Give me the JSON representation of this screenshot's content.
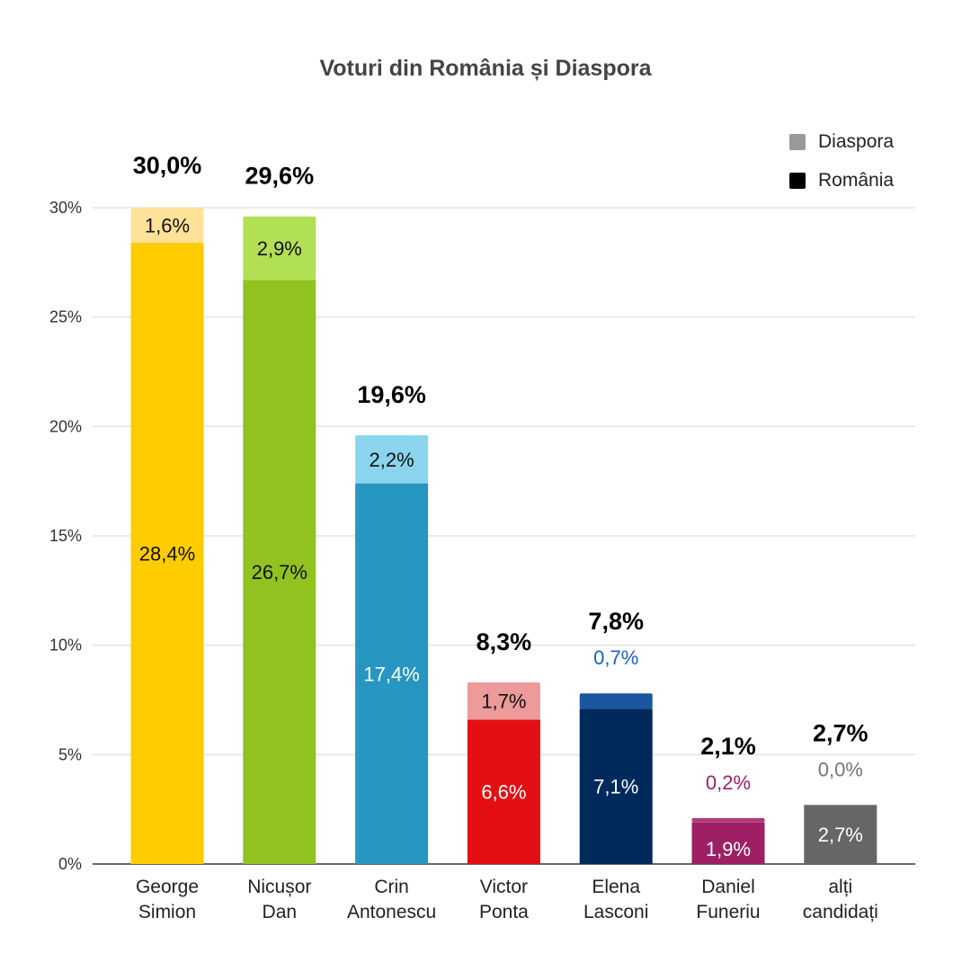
{
  "chart_data": {
    "type": "bar",
    "stacked": true,
    "title": "Voturi din România și Diaspora",
    "xlabel": "",
    "ylabel": "",
    "ylim": [
      0,
      30
    ],
    "yticks": [
      "0%",
      "5%",
      "10%",
      "15%",
      "20%",
      "25%",
      "30%"
    ],
    "grid": true,
    "legend_position": "top-right",
    "legend": [
      {
        "name": "Diaspora",
        "color": "#999999"
      },
      {
        "name": "România",
        "color": "#000000"
      }
    ],
    "categories": [
      [
        "George",
        "Simion"
      ],
      [
        "Nicușor",
        "Dan"
      ],
      [
        "Crin",
        "Antonescu"
      ],
      [
        "Victor",
        "Ponta"
      ],
      [
        "Elena",
        "Lasconi"
      ],
      [
        "Daniel",
        "Funeriu"
      ],
      [
        "alți",
        "candidați"
      ]
    ],
    "series": [
      {
        "name": "România",
        "values": [
          28.4,
          26.7,
          17.4,
          6.6,
          7.1,
          1.9,
          2.7
        ],
        "labels": [
          "28,4%",
          "26,7%",
          "17,4%",
          "6,6%",
          "7,1%",
          "1,9%",
          "2,7%"
        ],
        "colors": [
          "#FFCC00",
          "#92C21F",
          "#2796C1",
          "#E30F13",
          "#002A5C",
          "#9E1F63",
          "#666666"
        ]
      },
      {
        "name": "Diaspora",
        "values": [
          1.6,
          2.9,
          2.2,
          1.7,
          0.7,
          0.2,
          0.0
        ],
        "labels": [
          "1,6%",
          "2,9%",
          "2,2%",
          "1,7%",
          "0,7%",
          "0,2%",
          "0,0%"
        ],
        "colors": [
          "#FFE29A",
          "#B2E055",
          "#8BD4EE",
          "#EC9A9A",
          "#1A56A0",
          "#B23A7A",
          "#888888"
        ],
        "label_colors": [
          "#111111",
          "#111111",
          "#111111",
          "#111111",
          "#1A5FC8",
          "#9E1F63",
          "#777777"
        ]
      }
    ],
    "totals": [
      "30,0%",
      "29,6%",
      "19,6%",
      "8,3%",
      "7,8%",
      "2,1%",
      "2,7%"
    ]
  }
}
